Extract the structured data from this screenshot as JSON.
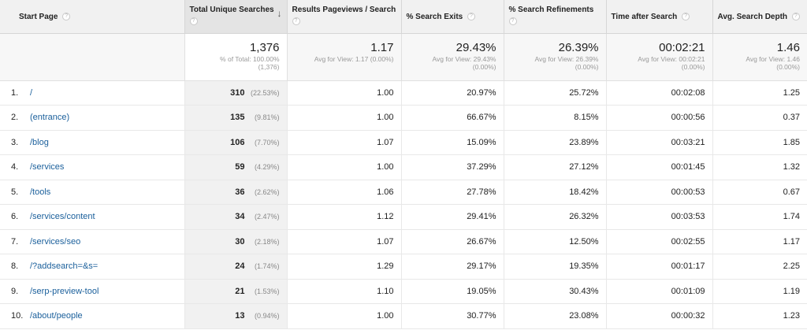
{
  "headers": [
    {
      "label": "Start Page"
    },
    {
      "label": "Total Unique Searches"
    },
    {
      "label": "Results Pageviews / Search"
    },
    {
      "label": "% Search Exits"
    },
    {
      "label": "% Search Refinements"
    },
    {
      "label": "Time after Search"
    },
    {
      "label": "Avg. Search Depth"
    }
  ],
  "help_glyph": "?",
  "sort_glyph": "↓",
  "totals": [
    {
      "value": "1,376",
      "sub1": "% of Total: 100.00%",
      "sub2": "(1,376)"
    },
    {
      "value": "1.17",
      "sub1": "Avg for View: 1.17 (0.00%)",
      "sub2": ""
    },
    {
      "value": "29.43%",
      "sub1": "Avg for View: 29.43%",
      "sub2": "(0.00%)"
    },
    {
      "value": "26.39%",
      "sub1": "Avg for View: 26.39%",
      "sub2": "(0.00%)"
    },
    {
      "value": "00:02:21",
      "sub1": "Avg for View: 00:02:21",
      "sub2": "(0.00%)"
    },
    {
      "value": "1.46",
      "sub1": "Avg for View: 1.46",
      "sub2": "(0.00%)"
    }
  ],
  "rows": [
    {
      "idx": "1.",
      "page": "/",
      "searches": "310",
      "pct": "(22.53%)",
      "pv": "1.00",
      "exits": "20.97%",
      "ref": "25.72%",
      "time": "00:02:08",
      "depth": "1.25"
    },
    {
      "idx": "2.",
      "page": "(entrance)",
      "searches": "135",
      "pct": "(9.81%)",
      "pv": "1.00",
      "exits": "66.67%",
      "ref": "8.15%",
      "time": "00:00:56",
      "depth": "0.37"
    },
    {
      "idx": "3.",
      "page": "/blog",
      "searches": "106",
      "pct": "(7.70%)",
      "pv": "1.07",
      "exits": "15.09%",
      "ref": "23.89%",
      "time": "00:03:21",
      "depth": "1.85"
    },
    {
      "idx": "4.",
      "page": "/services",
      "searches": "59",
      "pct": "(4.29%)",
      "pv": "1.00",
      "exits": "37.29%",
      "ref": "27.12%",
      "time": "00:01:45",
      "depth": "1.32"
    },
    {
      "idx": "5.",
      "page": "/tools",
      "searches": "36",
      "pct": "(2.62%)",
      "pv": "1.06",
      "exits": "27.78%",
      "ref": "18.42%",
      "time": "00:00:53",
      "depth": "0.67"
    },
    {
      "idx": "6.",
      "page": "/services/content",
      "searches": "34",
      "pct": "(2.47%)",
      "pv": "1.12",
      "exits": "29.41%",
      "ref": "26.32%",
      "time": "00:03:53",
      "depth": "1.74"
    },
    {
      "idx": "7.",
      "page": "/services/seo",
      "searches": "30",
      "pct": "(2.18%)",
      "pv": "1.07",
      "exits": "26.67%",
      "ref": "12.50%",
      "time": "00:02:55",
      "depth": "1.17"
    },
    {
      "idx": "8.",
      "page": "/?addsearch=&s=",
      "searches": "24",
      "pct": "(1.74%)",
      "pv": "1.29",
      "exits": "29.17%",
      "ref": "19.35%",
      "time": "00:01:17",
      "depth": "2.25"
    },
    {
      "idx": "9.",
      "page": "/serp-preview-tool",
      "searches": "21",
      "pct": "(1.53%)",
      "pv": "1.10",
      "exits": "19.05%",
      "ref": "30.43%",
      "time": "00:01:09",
      "depth": "1.19"
    },
    {
      "idx": "10.",
      "page": "/about/people",
      "searches": "13",
      "pct": "(0.94%)",
      "pv": "1.00",
      "exits": "30.77%",
      "ref": "23.08%",
      "time": "00:00:32",
      "depth": "1.23"
    }
  ]
}
